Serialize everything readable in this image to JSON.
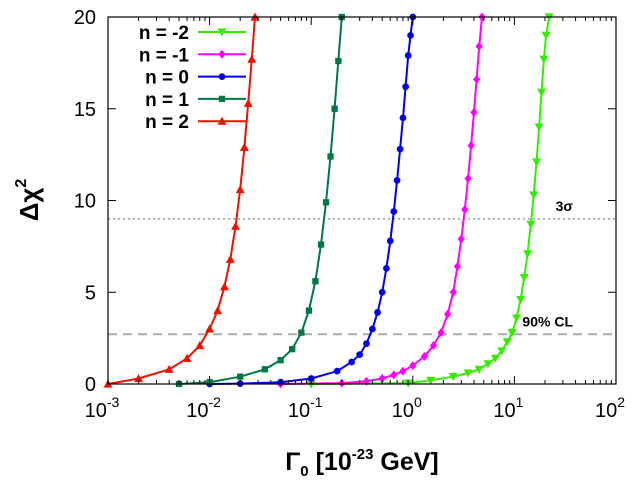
{
  "chart_data": {
    "type": "line",
    "xlabel_main": "Γ",
    "xlabel_sub": "0",
    "xlabel_rest": " [10",
    "xlabel_exp": "-23",
    "xlabel_unit": " GeV]",
    "ylabel_main": "Δχ",
    "ylabel_exp": "2",
    "x_scale": "log",
    "xlim": [
      0.001,
      100
    ],
    "ylim": [
      0,
      20
    ],
    "x_ticks": [
      {
        "base": "10",
        "exp": "-3"
      },
      {
        "base": "10",
        "exp": "-2"
      },
      {
        "base": "10",
        "exp": "-1"
      },
      {
        "base": "10",
        "exp": "0"
      },
      {
        "base": "10",
        "exp": "1"
      },
      {
        "base": "10",
        "exp": "2"
      }
    ],
    "x_tick_values": [
      0.001,
      0.01,
      0.1,
      1,
      10,
      100
    ],
    "y_ticks": [
      "0",
      "5",
      "10",
      "15",
      "20"
    ],
    "y_tick_values": [
      0,
      5,
      10,
      15,
      20
    ],
    "legend_position": "top-left",
    "reference_lines": [
      {
        "y": 9.0,
        "label": "3σ",
        "style": "dotted",
        "color": "#999999"
      },
      {
        "y": 2.71,
        "label": "90% CL",
        "style": "dashed",
        "color": "#aaaaaa"
      }
    ],
    "series": [
      {
        "name": "n = -2",
        "color": "#33ee00",
        "marker": "triangle-down",
        "x": [
          0.1,
          0.9,
          1.5,
          2.5,
          3.5,
          4.5,
          5.5,
          6.5,
          7.5,
          8.5,
          9.5,
          10.5,
          11.5,
          12.5,
          13.5,
          14.5,
          15.5,
          16.5,
          17.5,
          18.5,
          19.5,
          20.5,
          22.0
        ],
        "y": [
          0.0,
          0.05,
          0.2,
          0.4,
          0.6,
          0.8,
          1.1,
          1.4,
          1.8,
          2.3,
          2.8,
          3.6,
          4.6,
          5.8,
          7.1,
          8.7,
          10.3,
          12.1,
          14.0,
          15.9,
          17.7,
          19.0,
          20.0
        ]
      },
      {
        "name": "n = -1",
        "color": "#ff00ff",
        "marker": "diamond",
        "x": [
          0.05,
          0.2,
          0.35,
          0.5,
          0.65,
          0.8,
          1.0,
          1.3,
          1.6,
          1.9,
          2.2,
          2.5,
          2.75,
          3.0,
          3.25,
          3.5,
          3.75,
          4.0,
          4.25,
          4.5,
          4.8
        ],
        "y": [
          0.0,
          0.05,
          0.15,
          0.3,
          0.5,
          0.7,
          1.0,
          1.5,
          2.1,
          2.8,
          3.8,
          5.0,
          6.4,
          7.9,
          9.5,
          11.2,
          13.0,
          14.8,
          16.6,
          18.4,
          20.0
        ]
      },
      {
        "name": "n = 0",
        "color": "#0000ee",
        "marker": "circle",
        "x": [
          0.01,
          0.02,
          0.05,
          0.1,
          0.18,
          0.25,
          0.3,
          0.35,
          0.4,
          0.45,
          0.5,
          0.55,
          0.6,
          0.65,
          0.7,
          0.75,
          0.8,
          0.85,
          0.9,
          0.95,
          1.0
        ],
        "y": [
          0.0,
          0.02,
          0.1,
          0.3,
          0.7,
          1.2,
          1.6,
          2.2,
          3.0,
          3.9,
          5.0,
          6.3,
          7.8,
          9.4,
          11.1,
          12.8,
          14.5,
          16.2,
          17.9,
          19.0,
          20.0
        ]
      },
      {
        "name": "n = 1",
        "color": "#007744",
        "marker": "square",
        "x": [
          0.005,
          0.01,
          0.02,
          0.035,
          0.05,
          0.065,
          0.08,
          0.095,
          0.11,
          0.125,
          0.14,
          0.155,
          0.17,
          0.185,
          0.2
        ],
        "y": [
          0.0,
          0.1,
          0.4,
          0.8,
          1.3,
          1.9,
          2.8,
          4.0,
          5.6,
          7.6,
          9.9,
          12.4,
          15.0,
          17.6,
          20.0
        ]
      },
      {
        "name": "n = 2",
        "color": "#ee1100",
        "marker": "triangle-up",
        "x": [
          0.001,
          0.002,
          0.004,
          0.006,
          0.008,
          0.01,
          0.012,
          0.014,
          0.016,
          0.018,
          0.02,
          0.022,
          0.024,
          0.026,
          0.028
        ],
        "y": [
          0.0,
          0.3,
          0.8,
          1.4,
          2.1,
          3.0,
          4.0,
          5.3,
          6.8,
          8.6,
          10.6,
          12.9,
          15.3,
          17.7,
          20.0
        ]
      }
    ]
  }
}
